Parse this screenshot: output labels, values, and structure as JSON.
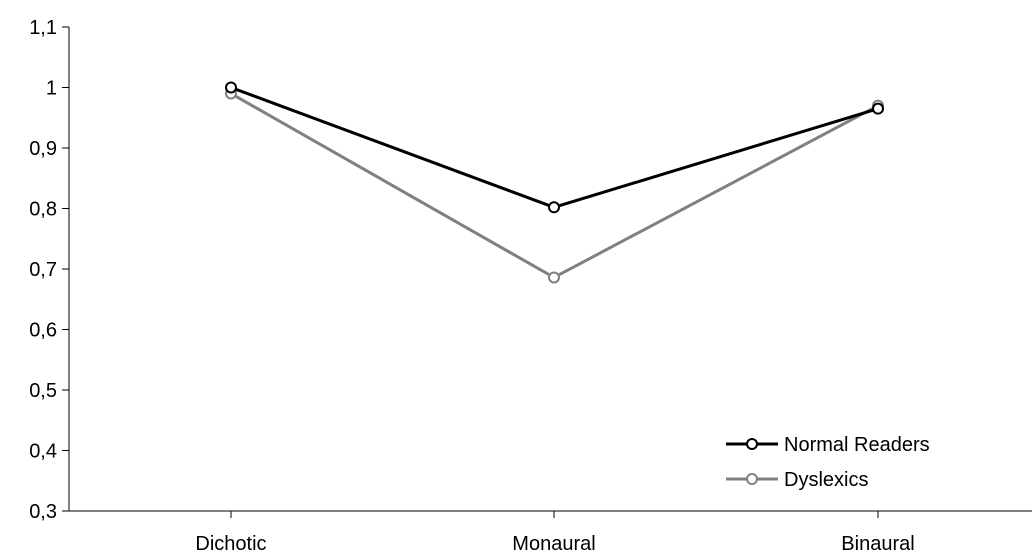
{
  "chart_data": {
    "type": "line",
    "categories": [
      "Dichotic",
      "Monaural",
      "Binaural"
    ],
    "series": [
      {
        "name": "Normal Readers",
        "values": [
          1.0,
          0.802,
          0.965
        ],
        "color": "#000000",
        "marker_fill": "#ffffff"
      },
      {
        "name": "Dyslexics",
        "values": [
          0.99,
          0.686,
          0.97
        ],
        "color": "#808080",
        "marker_fill": "#ffffff"
      }
    ],
    "yticks": [
      "0,3",
      "0,4",
      "0,5",
      "0,6",
      "0,7",
      "0,8",
      "0,9",
      "1",
      "1,1"
    ],
    "ytick_values": [
      0.3,
      0.4,
      0.5,
      0.6,
      0.7,
      0.8,
      0.9,
      1.0,
      1.1
    ],
    "ylim": [
      0.3,
      1.1
    ],
    "grid": false,
    "legend_position": "bottom-right",
    "axis_color": "#000000"
  }
}
